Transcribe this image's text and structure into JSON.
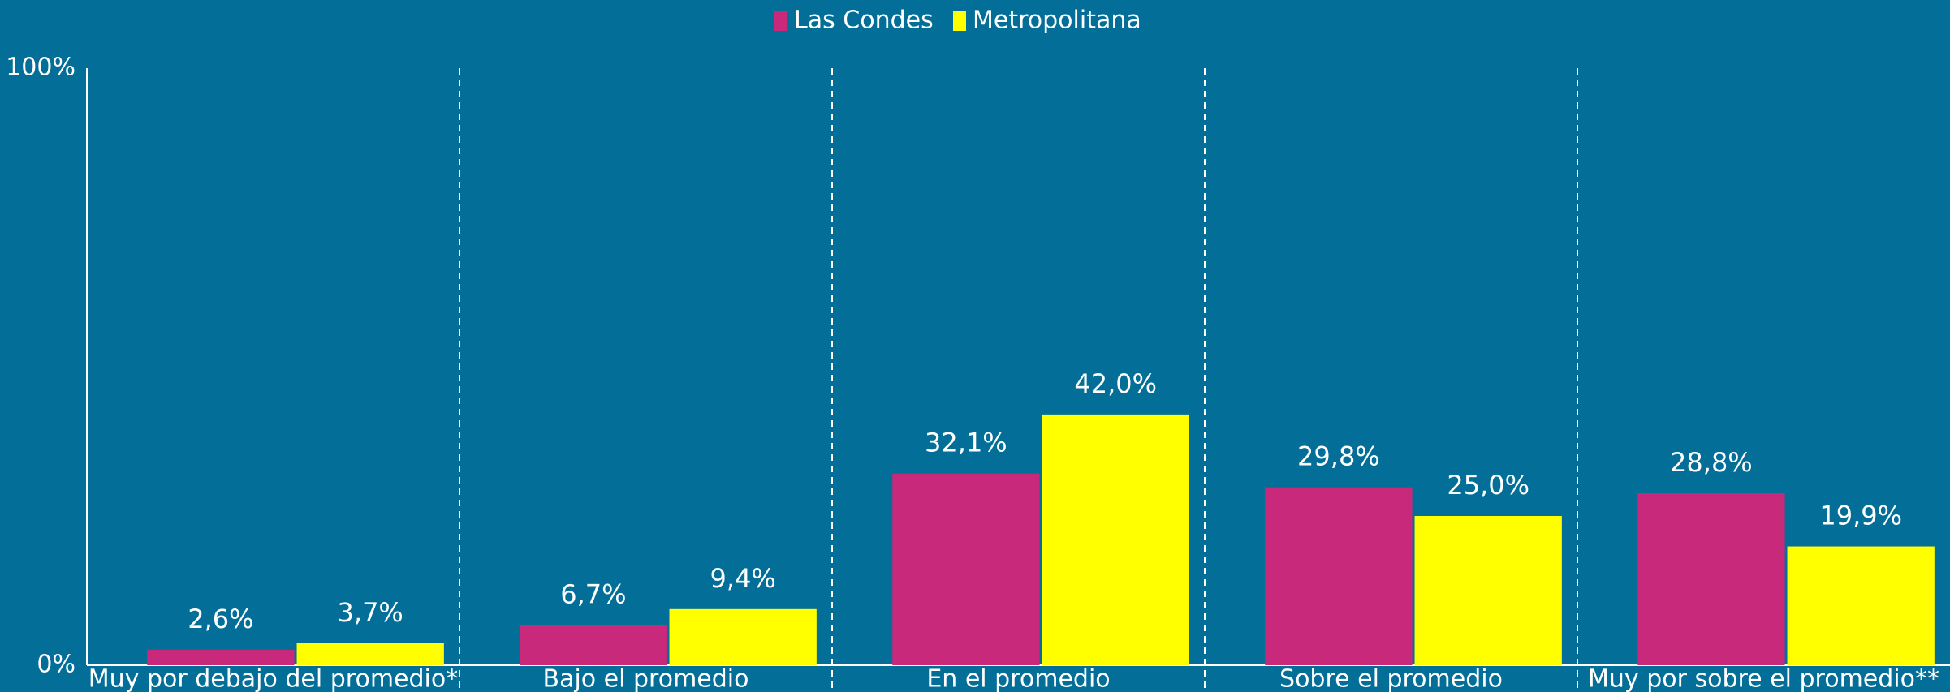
{
  "chart_data": {
    "type": "bar",
    "categories": [
      "Muy por debajo del promedio*",
      "Bajo el promedio",
      "En el promedio",
      "Sobre el promedio",
      "Muy por sobre el promedio**"
    ],
    "series": [
      {
        "name": "Las Condes",
        "color": "#c8297a",
        "values": [
          2.6,
          6.7,
          32.1,
          29.8,
          28.8
        ],
        "value_labels": [
          "2,6%",
          "6,7%",
          "32,1%",
          "29,8%",
          "28,8%"
        ]
      },
      {
        "name": "Metropolitana",
        "color": "#ffff00",
        "values": [
          3.7,
          9.4,
          42.0,
          25.0,
          19.9
        ],
        "value_labels": [
          "3,7%",
          "9,4%",
          "42,0%",
          "25,0%",
          "19,9%"
        ]
      }
    ],
    "ylim": [
      0,
      100
    ],
    "yticks": [
      {
        "value": 0,
        "label": "0%"
      },
      {
        "value": 100,
        "label": "100%"
      }
    ],
    "legend": "top"
  }
}
